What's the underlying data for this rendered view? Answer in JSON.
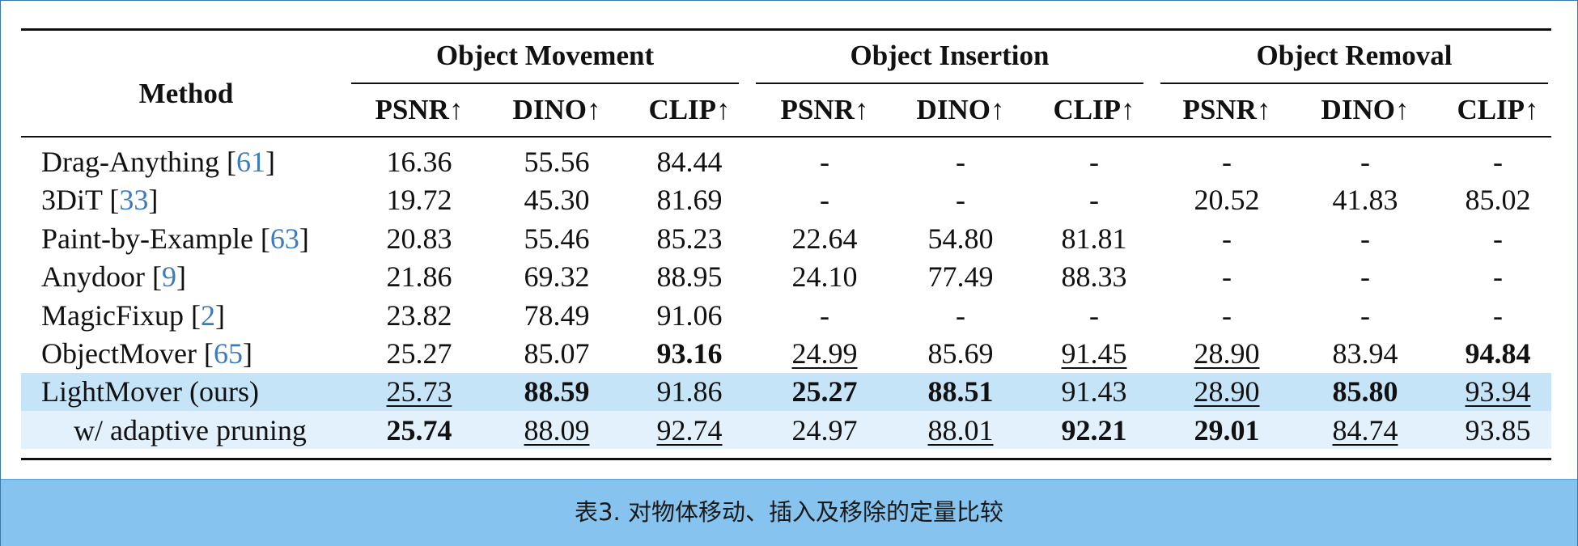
{
  "table": {
    "method_header": "Method",
    "group_headers": [
      "Object Movement",
      "Object Insertion",
      "Object Removal"
    ],
    "subcolumns": [
      "PSNR↑",
      "DINO↑",
      "CLIP↑",
      "PSNR↑",
      "DINO↑",
      "CLIP↑",
      "PSNR↑",
      "DINO↑",
      "CLIP↑"
    ],
    "rows": [
      {
        "method": "Drag-Anything [61]",
        "cells": [
          "16.36",
          "55.56",
          "84.44",
          "-",
          "-",
          "-",
          "-",
          "-",
          "-"
        ]
      },
      {
        "method": "3DiT [33]",
        "cells": [
          "19.72",
          "45.30",
          "81.69",
          "-",
          "-",
          "-",
          "20.52",
          "41.83",
          "85.02"
        ]
      },
      {
        "method": "Paint-by-Example [63]",
        "cells": [
          "20.83",
          "55.46",
          "85.23",
          "22.64",
          "54.80",
          "81.81",
          "-",
          "-",
          "-"
        ]
      },
      {
        "method": "Anydoor [9]",
        "cells": [
          "21.86",
          "69.32",
          "88.95",
          "24.10",
          "77.49",
          "88.33",
          "-",
          "-",
          "-"
        ]
      },
      {
        "method": "MagicFixup [2]",
        "cells": [
          "23.82",
          "78.49",
          "91.06",
          "-",
          "-",
          "-",
          "-",
          "-",
          "-"
        ]
      },
      {
        "method": "ObjectMover [65]",
        "cells": [
          "25.27",
          "85.07",
          "93.16",
          "24.99",
          "85.69",
          "91.45",
          "28.90",
          "83.94",
          "94.84"
        ],
        "bold": [
          2,
          8
        ],
        "underline": [
          3,
          5,
          6
        ]
      },
      {
        "method": "LightMover (ours)",
        "cells": [
          "25.73",
          "88.59",
          "91.86",
          "25.27",
          "88.51",
          "91.43",
          "28.90",
          "85.80",
          "93.94"
        ],
        "bold": [
          1,
          3,
          4,
          7
        ],
        "underline": [
          0,
          6,
          8
        ],
        "highlight": "#c6e4f7"
      },
      {
        "method": "w/ adaptive pruning",
        "cells": [
          "25.74",
          "88.09",
          "92.74",
          "24.97",
          "88.01",
          "92.21",
          "29.01",
          "84.74",
          "93.85"
        ],
        "bold": [
          0,
          5,
          6
        ],
        "underline": [
          1,
          2,
          4,
          7
        ],
        "highlight": "#e2f1fb",
        "indent": true
      }
    ]
  },
  "caption": "表3. 对物体移动、插入及移除的定量比较"
}
